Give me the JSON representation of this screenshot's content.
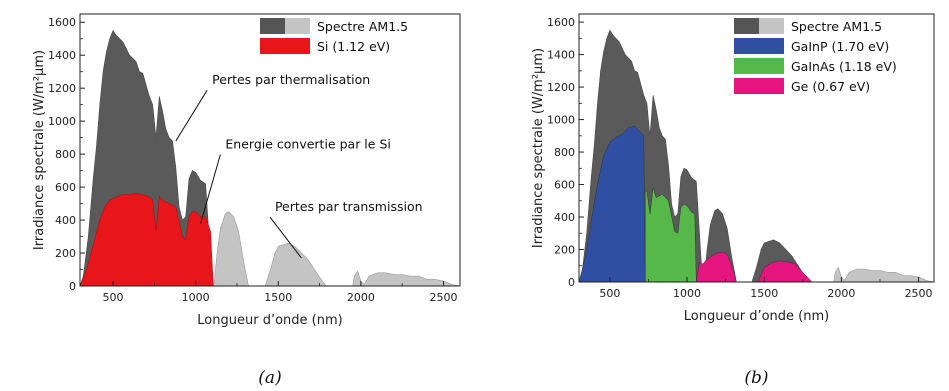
{
  "chart_data": [
    {
      "type": "area",
      "panel_label": "(a)",
      "xlabel": "Longueur d’onde (nm)",
      "ylabel": "Irradiance spectrale (W/m²µm)",
      "xlim": [
        300,
        2600
      ],
      "ylim": [
        0,
        1650
      ],
      "xticks": [
        500,
        1000,
        1500,
        2000,
        2500
      ],
      "yticks": [
        0,
        200,
        400,
        600,
        800,
        1000,
        1200,
        1400,
        1600
      ],
      "legend_position": "top-right",
      "legend": [
        {
          "label": "Spectre AM1.5",
          "swatch": [
            "#555555",
            "#c4c4c4"
          ]
        },
        {
          "label": "Si (1.12 eV)",
          "swatch": [
            "#e8161b"
          ]
        }
      ],
      "annotations": [
        {
          "text": "Pertes par thermalisation",
          "x": 1100,
          "y": 1200
        },
        {
          "text": "Energie convertie par le Si",
          "x": 1180,
          "y": 810
        },
        {
          "text": "Pertes par transmission",
          "x": 1480,
          "y": 430
        }
      ],
      "spectrum": {
        "x": [
          300,
          320,
          350,
          380,
          400,
          420,
          440,
          460,
          480,
          500,
          520,
          540,
          560,
          580,
          600,
          620,
          640,
          660,
          680,
          700,
          720,
          740,
          760,
          780,
          800,
          820,
          840,
          860,
          880,
          900,
          920,
          940,
          960,
          980,
          1000,
          1030,
          1060,
          1100,
          1110,
          1130,
          1150,
          1160,
          1180,
          1200,
          1230,
          1260,
          1290,
          1320,
          1340,
          1350,
          1380,
          1420,
          1450,
          1480,
          1500,
          1530,
          1560,
          1600,
          1640,
          1680,
          1720,
          1760,
          1790,
          1800,
          1850,
          1900,
          1950,
          1960,
          1980,
          2000,
          2020,
          2050,
          2100,
          2150,
          2200,
          2250,
          2300,
          2350,
          2400,
          2450,
          2500,
          2550,
          2600
        ],
        "y": [
          0,
          60,
          300,
          650,
          850,
          1100,
          1300,
          1420,
          1500,
          1550,
          1520,
          1500,
          1480,
          1440,
          1400,
          1380,
          1360,
          1300,
          1290,
          1220,
          1150,
          1100,
          900,
          1150,
          1060,
          950,
          900,
          880,
          720,
          480,
          400,
          420,
          650,
          700,
          690,
          640,
          620,
          0,
          0,
          200,
          350,
          380,
          440,
          450,
          420,
          330,
          150,
          0,
          0,
          0,
          0,
          0,
          90,
          200,
          240,
          250,
          260,
          240,
          200,
          160,
          100,
          40,
          0,
          0,
          0,
          0,
          0,
          60,
          90,
          30,
          10,
          60,
          80,
          80,
          70,
          70,
          60,
          60,
          40,
          40,
          30,
          10,
          0
        ]
      },
      "converted": {
        "name": "Si (1.12 eV)",
        "x": [
          300,
          340,
          380,
          420,
          450,
          480,
          520,
          560,
          600,
          640,
          680,
          720,
          740,
          760,
          780,
          800,
          840,
          880,
          920,
          940,
          960,
          980,
          1000,
          1030,
          1060,
          1090,
          1107
        ],
        "y": [
          0,
          100,
          250,
          400,
          480,
          520,
          540,
          555,
          555,
          560,
          555,
          540,
          520,
          330,
          545,
          520,
          500,
          480,
          300,
          280,
          420,
          450,
          450,
          420,
          420,
          330,
          0
        ]
      }
    },
    {
      "type": "area",
      "panel_label": "(b)",
      "xlabel": "Longueur d’onde (nm)",
      "ylabel": "Irradiance spectrale (W/m²µm)",
      "xlim": [
        300,
        2600
      ],
      "ylim": [
        0,
        1650
      ],
      "xticks": [
        500,
        1000,
        1500,
        2000,
        2500
      ],
      "yticks": [
        0,
        200,
        400,
        600,
        800,
        1000,
        1200,
        1400,
        1600
      ],
      "legend_position": "top-right",
      "legend": [
        {
          "label": "Spectre AM1.5",
          "swatch": [
            "#555555",
            "#c4c4c4"
          ]
        },
        {
          "label": "GaInP (1.70 eV)",
          "swatch": [
            "#2f4fa3"
          ]
        },
        {
          "label": "GaInAs (1.18 eV)",
          "swatch": [
            "#55b848"
          ]
        },
        {
          "label": "Ge (0.67 eV)",
          "swatch": [
            "#e6147e"
          ]
        }
      ],
      "spectrum_ref": 0,
      "junctions": [
        {
          "name": "GaInP (1.70 eV)",
          "color": "#2f4fa3",
          "x": [
            300,
            340,
            380,
            420,
            460,
            500,
            540,
            580,
            620,
            660,
            690,
            720,
            729
          ],
          "y": [
            0,
            150,
            380,
            600,
            780,
            860,
            890,
            910,
            950,
            960,
            930,
            900,
            0
          ]
        },
        {
          "name": "GaInAs (1.18 eV)",
          "color": "#55b848",
          "x": [
            729,
            740,
            760,
            780,
            800,
            840,
            880,
            920,
            940,
            960,
            980,
            1000,
            1030,
            1050,
            1060
          ],
          "y": [
            560,
            560,
            420,
            580,
            520,
            540,
            500,
            310,
            300,
            460,
            480,
            470,
            430,
            420,
            0
          ]
        },
        {
          "name": "Ge (0.67 eV)",
          "color": "#e6147e",
          "x": [
            1060,
            1080,
            1100,
            1130,
            1160,
            1200,
            1230,
            1260,
            1290,
            1320,
            1460,
            1500,
            1550,
            1600,
            1650,
            1700,
            1750,
            1790,
            1810,
            1850
          ],
          "y": [
            0,
            120,
            110,
            140,
            160,
            180,
            185,
            170,
            100,
            0,
            0,
            90,
            120,
            130,
            125,
            110,
            60,
            20,
            0,
            0
          ]
        }
      ]
    }
  ]
}
